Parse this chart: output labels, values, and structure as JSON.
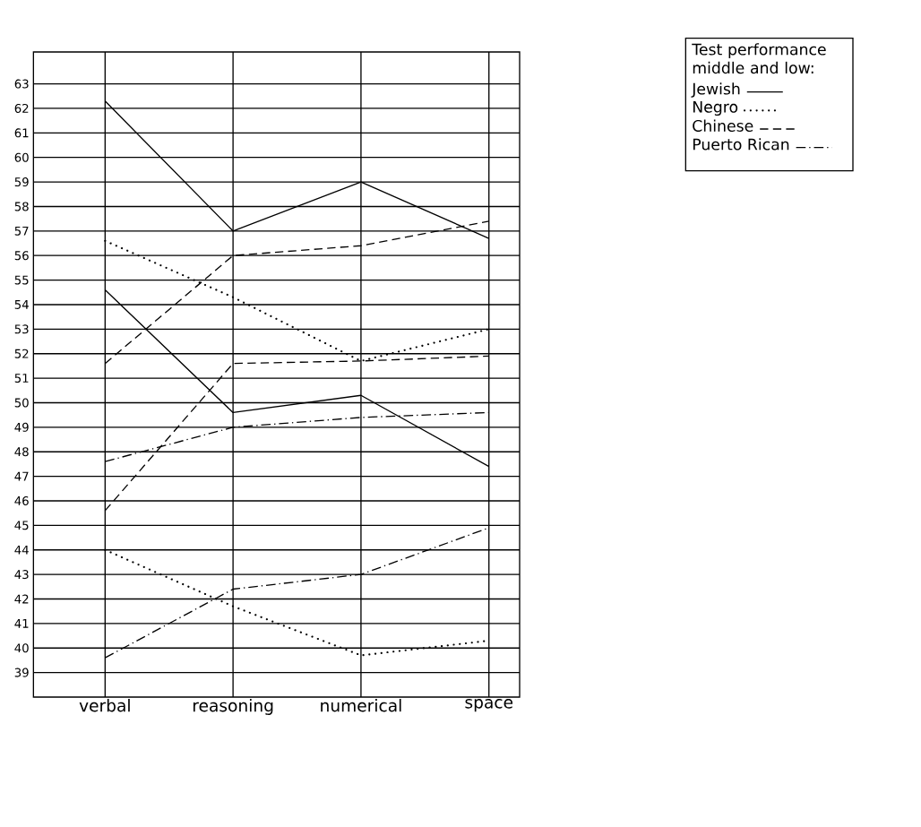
{
  "chart_data": {
    "type": "line",
    "legend_title": "Test performance\nmiddle and low:",
    "categories": [
      "verbal",
      "reasoning",
      "numerical",
      "space"
    ],
    "series": [
      {
        "name": "Jewish",
        "color": "#000000",
        "line_style": "solid",
        "values": [
          62.3,
          57.0,
          59.0,
          56.7
        ]
      },
      {
        "color": "#000000",
        "line_style": "solid",
        "values": [
          54.6,
          49.6,
          50.3,
          47.4
        ]
      },
      {
        "name": "Negro",
        "color": "#000000",
        "line_style": "dotted",
        "values": [
          56.6,
          54.3,
          51.7,
          53.0
        ]
      },
      {
        "color": "#000000",
        "line_style": "dotted",
        "values": [
          44.0,
          41.7,
          39.7,
          40.3
        ]
      },
      {
        "name": "Chinese",
        "color": "#000000",
        "line_style": "dashed",
        "values": [
          51.6,
          56.0,
          56.4,
          57.4
        ]
      },
      {
        "color": "#000000",
        "line_style": "dashed",
        "values": [
          45.6,
          51.6,
          51.7,
          51.9
        ]
      },
      {
        "name": "Puerto Rican",
        "color": "#000000",
        "line_style": "dashdot",
        "values": [
          47.6,
          49.0,
          49.4,
          49.6
        ]
      },
      {
        "color": "#000000",
        "line_style": "dashdot",
        "values": [
          39.6,
          42.4,
          43.0,
          44.9
        ]
      }
    ],
    "ylim": [
      38,
      64.3
    ],
    "yticks": [
      39,
      40,
      41,
      42,
      43,
      44,
      45,
      46,
      47,
      48,
      49,
      50,
      51,
      52,
      53,
      54,
      55,
      56,
      57,
      58,
      59,
      60,
      61,
      62,
      63
    ],
    "grid": true,
    "legend": "top right",
    "marker": "none"
  }
}
